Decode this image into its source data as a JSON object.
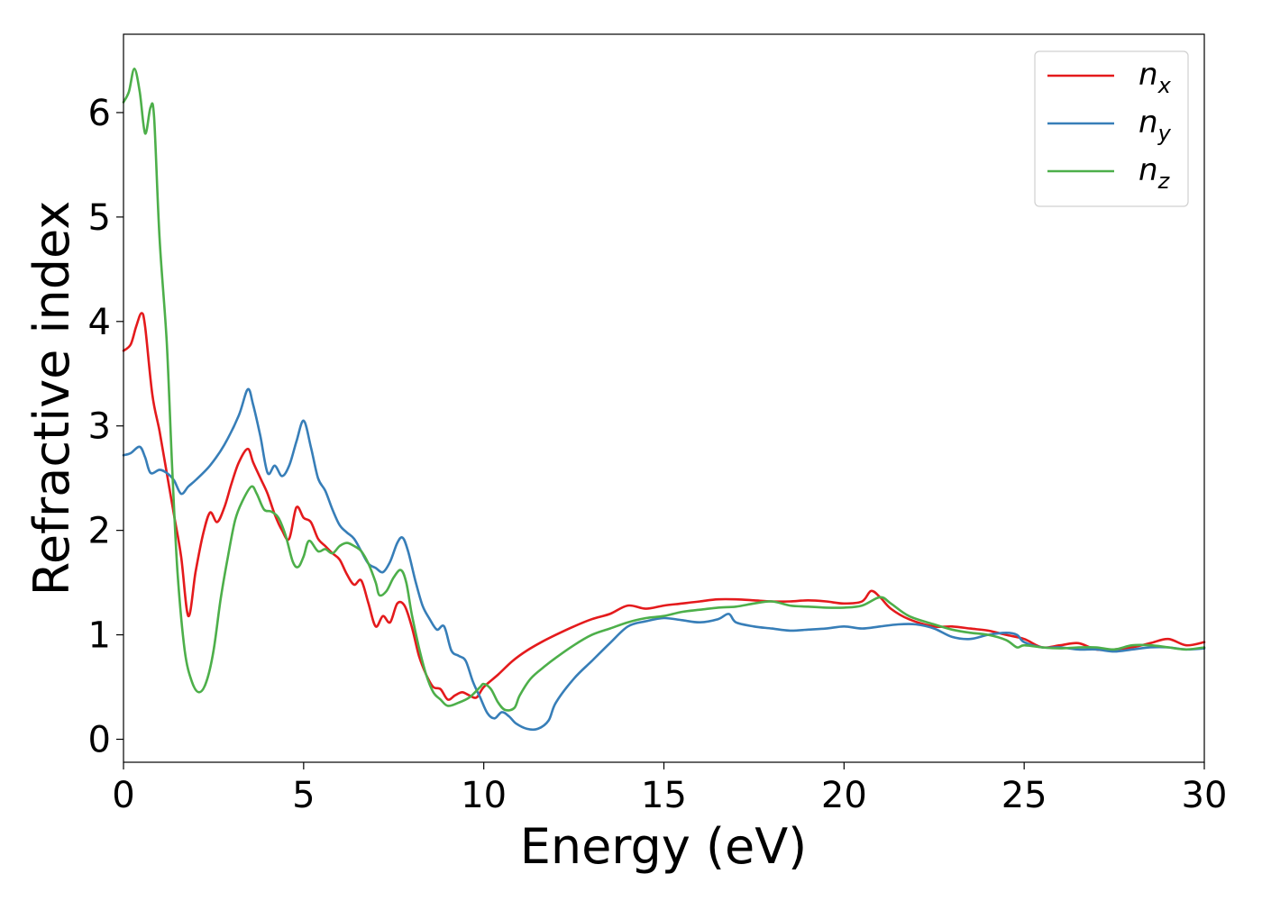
{
  "chart_data": {
    "type": "line",
    "xlabel": "Energy (eV)",
    "ylabel": "Refractive index",
    "xlim": [
      0,
      30
    ],
    "ylim": [
      -0.22,
      6.75
    ],
    "xticks": [
      0,
      5,
      10,
      15,
      20,
      25,
      30
    ],
    "yticks": [
      0,
      1,
      2,
      3,
      4,
      5,
      6
    ],
    "xtick_labels": [
      "0",
      "5",
      "10",
      "15",
      "20",
      "25",
      "30"
    ],
    "ytick_labels": [
      "0",
      "1",
      "2",
      "3",
      "4",
      "5",
      "6"
    ],
    "grid": false,
    "legend_position": "top-right",
    "series": [
      {
        "name": "n_x",
        "label_base": "n",
        "label_sub": "x",
        "color": "#e41a1c",
        "points": [
          [
            0,
            3.72
          ],
          [
            0.2,
            3.78
          ],
          [
            0.35,
            3.95
          ],
          [
            0.5,
            4.08
          ],
          [
            0.6,
            3.95
          ],
          [
            0.8,
            3.3
          ],
          [
            1.0,
            2.95
          ],
          [
            1.2,
            2.55
          ],
          [
            1.4,
            2.15
          ],
          [
            1.6,
            1.75
          ],
          [
            1.8,
            1.18
          ],
          [
            2.0,
            1.6
          ],
          [
            2.2,
            1.95
          ],
          [
            2.4,
            2.17
          ],
          [
            2.6,
            2.08
          ],
          [
            2.8,
            2.22
          ],
          [
            3.0,
            2.45
          ],
          [
            3.2,
            2.65
          ],
          [
            3.45,
            2.78
          ],
          [
            3.6,
            2.65
          ],
          [
            3.8,
            2.5
          ],
          [
            4.0,
            2.35
          ],
          [
            4.2,
            2.15
          ],
          [
            4.4,
            2.0
          ],
          [
            4.6,
            1.92
          ],
          [
            4.8,
            2.22
          ],
          [
            5.0,
            2.12
          ],
          [
            5.2,
            2.08
          ],
          [
            5.4,
            1.92
          ],
          [
            5.6,
            1.85
          ],
          [
            5.8,
            1.78
          ],
          [
            6.0,
            1.72
          ],
          [
            6.2,
            1.58
          ],
          [
            6.4,
            1.48
          ],
          [
            6.6,
            1.52
          ],
          [
            6.8,
            1.3
          ],
          [
            7.0,
            1.08
          ],
          [
            7.2,
            1.18
          ],
          [
            7.4,
            1.12
          ],
          [
            7.6,
            1.3
          ],
          [
            7.8,
            1.28
          ],
          [
            8.0,
            1.08
          ],
          [
            8.2,
            0.8
          ],
          [
            8.4,
            0.62
          ],
          [
            8.6,
            0.5
          ],
          [
            8.8,
            0.48
          ],
          [
            9.0,
            0.38
          ],
          [
            9.2,
            0.42
          ],
          [
            9.4,
            0.45
          ],
          [
            9.6,
            0.42
          ],
          [
            9.8,
            0.4
          ],
          [
            10.0,
            0.5
          ],
          [
            10.4,
            0.62
          ],
          [
            10.8,
            0.75
          ],
          [
            11.2,
            0.85
          ],
          [
            11.6,
            0.93
          ],
          [
            12.0,
            1.0
          ],
          [
            12.5,
            1.08
          ],
          [
            13.0,
            1.15
          ],
          [
            13.5,
            1.2
          ],
          [
            14.0,
            1.28
          ],
          [
            14.5,
            1.25
          ],
          [
            15.0,
            1.28
          ],
          [
            15.5,
            1.3
          ],
          [
            16.0,
            1.32
          ],
          [
            16.5,
            1.34
          ],
          [
            17.0,
            1.34
          ],
          [
            17.5,
            1.33
          ],
          [
            18.0,
            1.32
          ],
          [
            18.5,
            1.32
          ],
          [
            19.0,
            1.33
          ],
          [
            19.5,
            1.32
          ],
          [
            20.0,
            1.3
          ],
          [
            20.5,
            1.32
          ],
          [
            20.75,
            1.42
          ],
          [
            21.0,
            1.36
          ],
          [
            21.3,
            1.25
          ],
          [
            21.8,
            1.15
          ],
          [
            22.5,
            1.08
          ],
          [
            23.0,
            1.08
          ],
          [
            23.5,
            1.06
          ],
          [
            24.0,
            1.04
          ],
          [
            24.5,
            1.0
          ],
          [
            25.0,
            0.96
          ],
          [
            25.5,
            0.88
          ],
          [
            26.0,
            0.9
          ],
          [
            26.5,
            0.92
          ],
          [
            27.0,
            0.86
          ],
          [
            27.5,
            0.86
          ],
          [
            28.0,
            0.88
          ],
          [
            28.5,
            0.92
          ],
          [
            29.0,
            0.96
          ],
          [
            29.5,
            0.9
          ],
          [
            30.0,
            0.93
          ]
        ]
      },
      {
        "name": "n_y",
        "label_base": "n",
        "label_sub": "y",
        "color": "#377eb8",
        "points": [
          [
            0,
            2.72
          ],
          [
            0.2,
            2.74
          ],
          [
            0.45,
            2.8
          ],
          [
            0.6,
            2.7
          ],
          [
            0.75,
            2.55
          ],
          [
            1.0,
            2.58
          ],
          [
            1.2,
            2.55
          ],
          [
            1.4,
            2.48
          ],
          [
            1.6,
            2.35
          ],
          [
            1.8,
            2.42
          ],
          [
            2.0,
            2.48
          ],
          [
            2.4,
            2.62
          ],
          [
            2.8,
            2.82
          ],
          [
            3.2,
            3.1
          ],
          [
            3.45,
            3.35
          ],
          [
            3.6,
            3.2
          ],
          [
            3.8,
            2.9
          ],
          [
            4.0,
            2.55
          ],
          [
            4.2,
            2.62
          ],
          [
            4.4,
            2.52
          ],
          [
            4.6,
            2.62
          ],
          [
            4.8,
            2.85
          ],
          [
            5.0,
            3.05
          ],
          [
            5.2,
            2.8
          ],
          [
            5.4,
            2.5
          ],
          [
            5.6,
            2.38
          ],
          [
            5.8,
            2.2
          ],
          [
            6.0,
            2.05
          ],
          [
            6.2,
            1.98
          ],
          [
            6.4,
            1.92
          ],
          [
            6.6,
            1.8
          ],
          [
            6.8,
            1.68
          ],
          [
            7.0,
            1.64
          ],
          [
            7.2,
            1.6
          ],
          [
            7.4,
            1.7
          ],
          [
            7.6,
            1.88
          ],
          [
            7.75,
            1.93
          ],
          [
            7.9,
            1.8
          ],
          [
            8.1,
            1.52
          ],
          [
            8.3,
            1.28
          ],
          [
            8.5,
            1.15
          ],
          [
            8.7,
            1.05
          ],
          [
            8.9,
            1.08
          ],
          [
            9.1,
            0.85
          ],
          [
            9.3,
            0.8
          ],
          [
            9.5,
            0.75
          ],
          [
            9.7,
            0.55
          ],
          [
            9.9,
            0.4
          ],
          [
            10.1,
            0.25
          ],
          [
            10.3,
            0.2
          ],
          [
            10.5,
            0.26
          ],
          [
            10.7,
            0.22
          ],
          [
            10.9,
            0.15
          ],
          [
            11.2,
            0.1
          ],
          [
            11.5,
            0.1
          ],
          [
            11.8,
            0.18
          ],
          [
            12.0,
            0.35
          ],
          [
            12.5,
            0.58
          ],
          [
            13.0,
            0.75
          ],
          [
            13.5,
            0.92
          ],
          [
            14.0,
            1.08
          ],
          [
            14.5,
            1.13
          ],
          [
            15.0,
            1.16
          ],
          [
            15.5,
            1.14
          ],
          [
            16.0,
            1.12
          ],
          [
            16.5,
            1.15
          ],
          [
            16.8,
            1.2
          ],
          [
            17.0,
            1.12
          ],
          [
            17.5,
            1.08
          ],
          [
            18.0,
            1.06
          ],
          [
            18.5,
            1.04
          ],
          [
            19.0,
            1.05
          ],
          [
            19.5,
            1.06
          ],
          [
            20.0,
            1.08
          ],
          [
            20.5,
            1.06
          ],
          [
            21.0,
            1.08
          ],
          [
            21.5,
            1.1
          ],
          [
            22.0,
            1.1
          ],
          [
            22.5,
            1.06
          ],
          [
            23.0,
            0.98
          ],
          [
            23.5,
            0.96
          ],
          [
            24.0,
            1.0
          ],
          [
            24.5,
            1.02
          ],
          [
            24.8,
            1.0
          ],
          [
            25.0,
            0.93
          ],
          [
            25.5,
            0.88
          ],
          [
            26.0,
            0.88
          ],
          [
            26.5,
            0.86
          ],
          [
            27.0,
            0.86
          ],
          [
            27.5,
            0.84
          ],
          [
            28.0,
            0.86
          ],
          [
            28.5,
            0.88
          ],
          [
            29.0,
            0.88
          ],
          [
            29.5,
            0.86
          ],
          [
            30.0,
            0.87
          ]
        ]
      },
      {
        "name": "n_z",
        "label_base": "n",
        "label_sub": "z",
        "color": "#4daf4a",
        "points": [
          [
            0,
            6.1
          ],
          [
            0.15,
            6.2
          ],
          [
            0.3,
            6.42
          ],
          [
            0.45,
            6.2
          ],
          [
            0.6,
            5.8
          ],
          [
            0.75,
            6.05
          ],
          [
            0.85,
            5.95
          ],
          [
            1.0,
            4.8
          ],
          [
            1.2,
            3.8
          ],
          [
            1.35,
            2.6
          ],
          [
            1.5,
            1.6
          ],
          [
            1.7,
            0.85
          ],
          [
            1.9,
            0.55
          ],
          [
            2.1,
            0.45
          ],
          [
            2.3,
            0.55
          ],
          [
            2.5,
            0.85
          ],
          [
            2.7,
            1.35
          ],
          [
            2.9,
            1.75
          ],
          [
            3.1,
            2.1
          ],
          [
            3.3,
            2.28
          ],
          [
            3.55,
            2.42
          ],
          [
            3.7,
            2.35
          ],
          [
            3.9,
            2.2
          ],
          [
            4.1,
            2.18
          ],
          [
            4.3,
            2.12
          ],
          [
            4.5,
            1.95
          ],
          [
            4.7,
            1.7
          ],
          [
            4.85,
            1.65
          ],
          [
            5.0,
            1.75
          ],
          [
            5.15,
            1.9
          ],
          [
            5.4,
            1.8
          ],
          [
            5.6,
            1.82
          ],
          [
            5.8,
            1.78
          ],
          [
            6.0,
            1.85
          ],
          [
            6.2,
            1.88
          ],
          [
            6.4,
            1.85
          ],
          [
            6.6,
            1.8
          ],
          [
            6.8,
            1.68
          ],
          [
            7.0,
            1.5
          ],
          [
            7.1,
            1.38
          ],
          [
            7.3,
            1.42
          ],
          [
            7.5,
            1.55
          ],
          [
            7.7,
            1.62
          ],
          [
            7.85,
            1.5
          ],
          [
            8.0,
            1.2
          ],
          [
            8.2,
            0.88
          ],
          [
            8.4,
            0.62
          ],
          [
            8.6,
            0.45
          ],
          [
            8.8,
            0.38
          ],
          [
            9.0,
            0.32
          ],
          [
            9.3,
            0.35
          ],
          [
            9.6,
            0.4
          ],
          [
            9.9,
            0.5
          ],
          [
            10.0,
            0.53
          ],
          [
            10.2,
            0.48
          ],
          [
            10.4,
            0.35
          ],
          [
            10.6,
            0.28
          ],
          [
            10.85,
            0.3
          ],
          [
            11.0,
            0.42
          ],
          [
            11.3,
            0.58
          ],
          [
            11.7,
            0.7
          ],
          [
            12.0,
            0.78
          ],
          [
            12.5,
            0.9
          ],
          [
            13.0,
            1.0
          ],
          [
            13.5,
            1.06
          ],
          [
            14.0,
            1.12
          ],
          [
            14.5,
            1.16
          ],
          [
            15.0,
            1.18
          ],
          [
            15.5,
            1.22
          ],
          [
            16.0,
            1.24
          ],
          [
            16.5,
            1.26
          ],
          [
            17.0,
            1.27
          ],
          [
            17.5,
            1.3
          ],
          [
            18.0,
            1.32
          ],
          [
            18.5,
            1.28
          ],
          [
            19.0,
            1.27
          ],
          [
            19.5,
            1.26
          ],
          [
            20.0,
            1.26
          ],
          [
            20.5,
            1.28
          ],
          [
            21.0,
            1.36
          ],
          [
            21.3,
            1.3
          ],
          [
            21.8,
            1.18
          ],
          [
            22.5,
            1.1
          ],
          [
            23.0,
            1.05
          ],
          [
            23.5,
            1.02
          ],
          [
            24.0,
            1.0
          ],
          [
            24.5,
            0.95
          ],
          [
            24.8,
            0.88
          ],
          [
            25.0,
            0.9
          ],
          [
            25.5,
            0.88
          ],
          [
            26.0,
            0.87
          ],
          [
            26.5,
            0.88
          ],
          [
            27.0,
            0.88
          ],
          [
            27.5,
            0.86
          ],
          [
            28.0,
            0.9
          ],
          [
            28.5,
            0.9
          ],
          [
            29.0,
            0.88
          ],
          [
            29.5,
            0.86
          ],
          [
            30.0,
            0.88
          ]
        ]
      }
    ]
  }
}
